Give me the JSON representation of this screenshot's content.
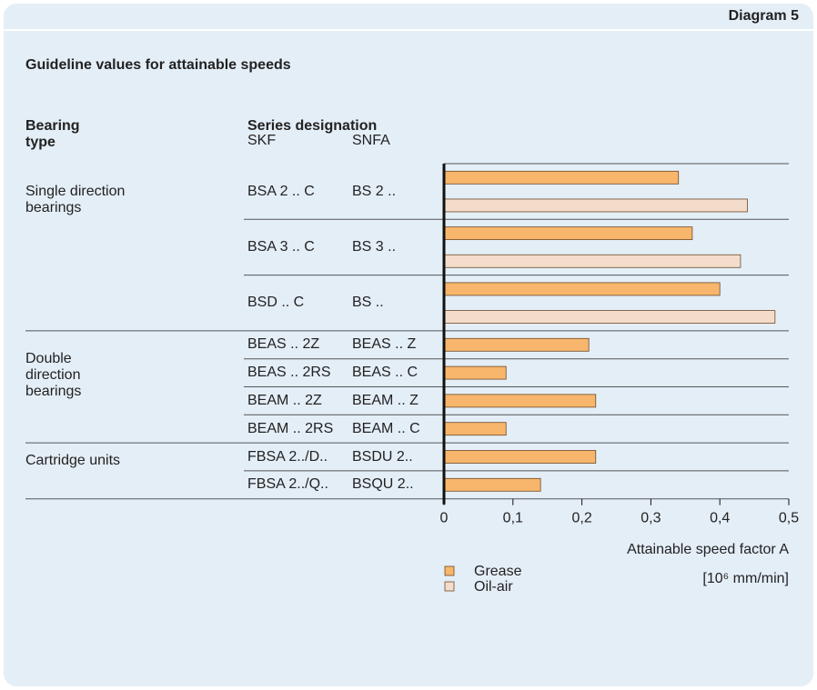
{
  "header": "Diagram 5",
  "chart_data": {
    "type": "bar",
    "title": "Guideline values for attainable speeds",
    "group_header": "Bearing type",
    "series_header": "Series designation",
    "skf_header": "SKF",
    "snfa_header": "SNFA",
    "group": [
      "Single direction bearings",
      null,
      null,
      "Double direction bearings",
      null,
      null,
      null,
      "Cartridge units",
      null
    ],
    "categories": [
      "BSA 2 .. C",
      "BSA 3 .. C",
      "BSD .. C",
      "BEAS .. 2Z",
      "BEAS .. 2RS",
      "BEAM .. 2Z",
      "BEAM .. 2RS",
      "FBSA 2../D..",
      "FBSA 2../Q.."
    ],
    "snfa": [
      "BS 2 ..",
      "BS 3 ..",
      "BS ..",
      "BEAS .. Z",
      "BEAS .. C",
      "BEAM .. Z",
      "BEAM .. C",
      "BSDU 2..",
      "BSQU 2.."
    ],
    "series": [
      {
        "name": "Grease",
        "color": "#f7b66b",
        "values": [
          0.34,
          0.36,
          0.4,
          0.21,
          0.09,
          0.22,
          0.09,
          0.22,
          0.14
        ]
      },
      {
        "name": "Oil-air",
        "color": "#f4dccb",
        "values": [
          0.44,
          0.43,
          0.48,
          null,
          null,
          null,
          null,
          null,
          null
        ]
      }
    ],
    "xlim": [
      0,
      0.5
    ],
    "xticks": [
      0,
      {
        "value": 0.1,
        "label": "0,1"
      },
      {
        "value": 0.2,
        "label": "0,2"
      },
      {
        "value": 0.3,
        "label": "0,3"
      },
      {
        "value": 0.4,
        "label": "0,4"
      },
      {
        "value": 0.5,
        "label": "0,5"
      }
    ],
    "xlabel": "Attainable speed factor A",
    "xunit": "[10⁶ mm/min]"
  }
}
